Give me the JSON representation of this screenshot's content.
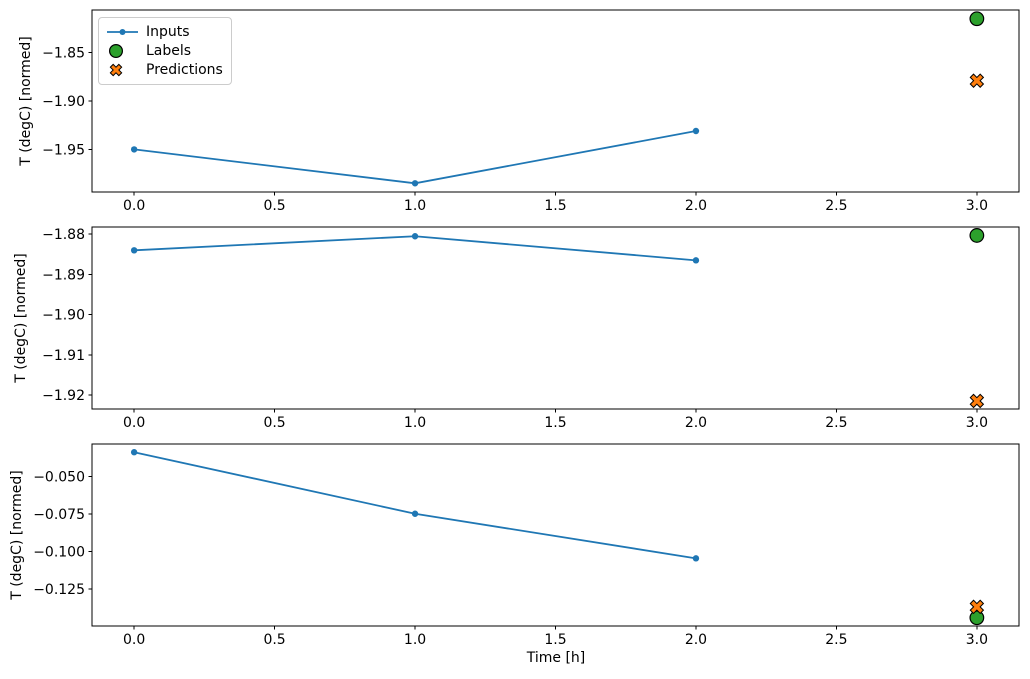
{
  "chart_data": {
    "type": "line",
    "title": "",
    "xlabel": "Time [h]",
    "xlim": [
      -0.15,
      3.15
    ],
    "xticks": {
      "values": [
        0.0,
        0.5,
        1.0,
        1.5,
        2.0,
        2.5,
        3.0
      ],
      "labels": [
        "0.0",
        "0.5",
        "1.0",
        "1.5",
        "2.0",
        "2.5",
        "3.0"
      ]
    },
    "grid": false,
    "legend": {
      "position": "upper left of first subplot",
      "entries": [
        {
          "label": "Inputs",
          "marker": "line-with-dot",
          "color": "#1f77b4"
        },
        {
          "label": "Labels",
          "marker": "filled-circle",
          "color": "#2ca02c"
        },
        {
          "label": "Predictions",
          "marker": "filled-x",
          "color": "#ff7f0e"
        }
      ]
    },
    "subplots": [
      {
        "ylabel": "T (degC) [normed]",
        "ylim": [
          -1.994,
          -1.806
        ],
        "yticks": {
          "values": [
            -1.85,
            -1.9,
            -1.95
          ],
          "labels": [
            "−1.85",
            "−1.90",
            "−1.95"
          ]
        },
        "series": [
          {
            "name": "Inputs",
            "type": "line",
            "marker": "dot",
            "color": "#1f77b4",
            "x": [
              0,
              1,
              2
            ],
            "y": [
              -1.95,
              -1.985,
              -1.931
            ]
          },
          {
            "name": "Labels",
            "type": "scatter",
            "marker": "circle",
            "color": "#2ca02c",
            "edge_color": "#000000",
            "x": [
              3
            ],
            "y": [
              -1.815
            ]
          },
          {
            "name": "Predictions",
            "type": "scatter",
            "marker": "X",
            "color": "#ff7f0e",
            "edge_color": "#000000",
            "x": [
              3
            ],
            "y": [
              -1.879
            ]
          }
        ]
      },
      {
        "ylabel": "T (degC) [normed]",
        "ylim": [
          -1.9235,
          -1.8782
        ],
        "yticks": {
          "values": [
            -1.88,
            -1.89,
            -1.9,
            -1.91,
            -1.92
          ],
          "labels": [
            "−1.88",
            "−1.89",
            "−1.90",
            "−1.91",
            "−1.92"
          ]
        },
        "series": [
          {
            "name": "Inputs",
            "type": "line",
            "marker": "dot",
            "color": "#1f77b4",
            "x": [
              0,
              1,
              2
            ],
            "y": [
              -1.884,
              -1.8805,
              -1.8865
            ]
          },
          {
            "name": "Labels",
            "type": "scatter",
            "marker": "circle",
            "color": "#2ca02c",
            "edge_color": "#000000",
            "x": [
              3
            ],
            "y": [
              -1.8803
            ]
          },
          {
            "name": "Predictions",
            "type": "scatter",
            "marker": "X",
            "color": "#ff7f0e",
            "edge_color": "#000000",
            "x": [
              3
            ],
            "y": [
              -1.9215
            ]
          }
        ]
      },
      {
        "ylabel": "T (degC) [normed]",
        "ylim": [
          -0.1498,
          -0.0282
        ],
        "yticks": {
          "values": [
            -0.05,
            -0.075,
            -0.1,
            -0.125
          ],
          "labels": [
            "−0.050",
            "−0.075",
            "−0.100",
            "−0.125"
          ]
        },
        "series": [
          {
            "name": "Inputs",
            "type": "line",
            "marker": "dot",
            "color": "#1f77b4",
            "x": [
              0,
              1,
              2
            ],
            "y": [
              -0.0337,
              -0.0748,
              -0.1046
            ]
          },
          {
            "name": "Labels",
            "type": "scatter",
            "marker": "circle",
            "color": "#2ca02c",
            "edge_color": "#000000",
            "x": [
              3
            ],
            "y": [
              -0.1443
            ]
          },
          {
            "name": "Predictions",
            "type": "scatter",
            "marker": "X",
            "color": "#ff7f0e",
            "edge_color": "#000000",
            "x": [
              3
            ],
            "y": [
              -0.137
            ]
          }
        ]
      }
    ]
  }
}
